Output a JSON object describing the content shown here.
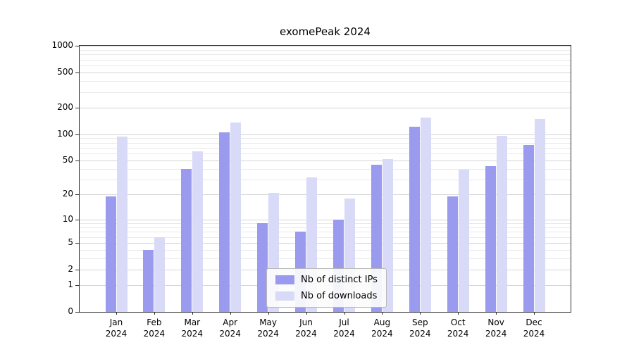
{
  "chart_data": {
    "type": "bar",
    "title": "exomePeak 2024",
    "categories": [
      "Jan",
      "Feb",
      "Mar",
      "Apr",
      "May",
      "Jun",
      "Jul",
      "Aug",
      "Sep",
      "Oct",
      "Nov",
      "Dec"
    ],
    "year": "2024",
    "series": [
      {
        "name": "Nb of distinct IPs",
        "color": "#9a9aef",
        "values": [
          19,
          4,
          40,
          105,
          9,
          7,
          10,
          45,
          122,
          19,
          43,
          75
        ]
      },
      {
        "name": "Nb of downloads",
        "color": "#d9d9f8",
        "values": [
          93,
          6,
          64,
          135,
          21,
          32,
          18,
          52,
          155,
          39,
          95,
          150
        ]
      }
    ],
    "yscale": "log1p",
    "ylim": [
      0,
      1000
    ],
    "yticks": [
      0,
      1,
      2,
      5,
      10,
      20,
      50,
      100,
      200,
      500,
      1000
    ],
    "yticks_minor": [
      3,
      4,
      6,
      7,
      8,
      9,
      30,
      40,
      60,
      70,
      80,
      90,
      300,
      400,
      600,
      700,
      800,
      900
    ],
    "grid": "horizontal",
    "legend_position": "bottom-center-inside",
    "colors": {
      "grid_major": "#d4d4d4",
      "grid_minor": "#e9e9e9",
      "axis": "#2e2e2e",
      "text": "#000000"
    }
  }
}
